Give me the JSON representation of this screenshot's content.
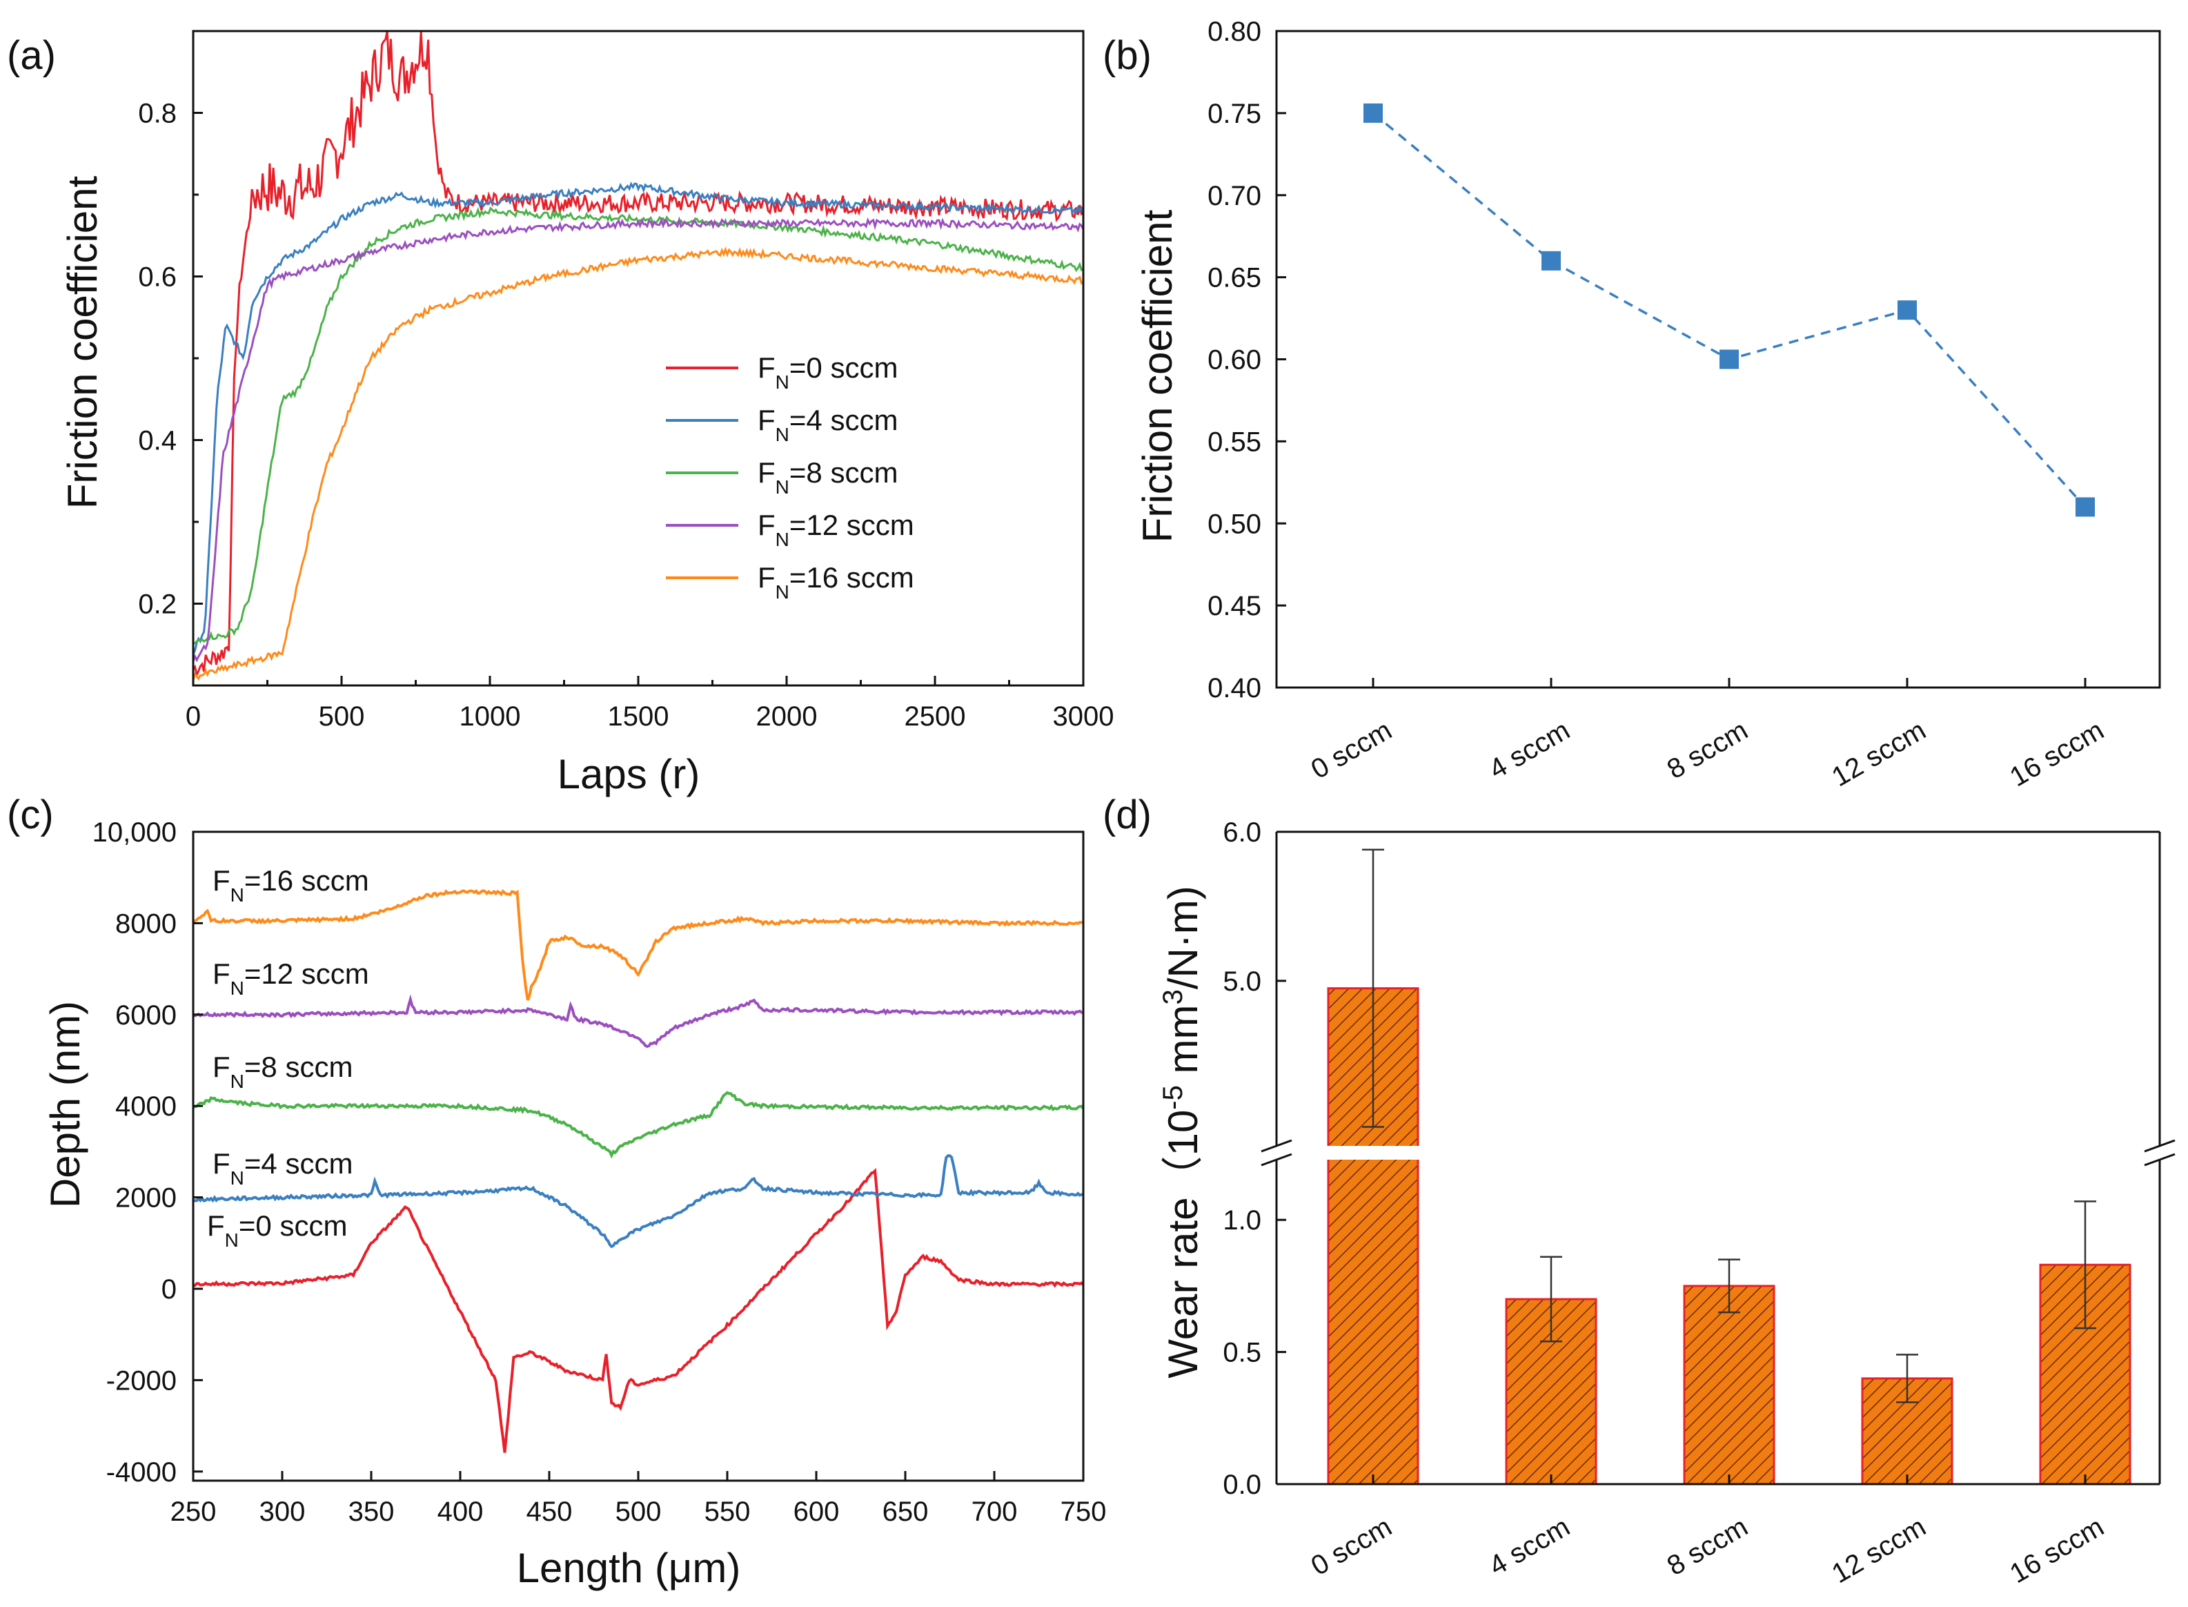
{
  "colors": {
    "sccm_0": "#e8202a",
    "sccm_4": "#3a7fc0",
    "sccm_8": "#4cb24a",
    "sccm_12": "#9b4fbf",
    "sccm_16": "#ff8a1a",
    "marker_b": "#3a7fc0",
    "bar_fill": "#f07c12",
    "bar_edge": "#e8202a"
  },
  "chart_data": [
    {
      "panel": "(a)",
      "type": "line",
      "xlabel": "Laps (r)",
      "ylabel": "Friction coefficient",
      "xlim": [
        0,
        3000
      ],
      "ylim": [
        0.1,
        0.9
      ],
      "xticks": [
        "0",
        "500",
        "1000",
        "1500",
        "2000",
        "2500",
        "3000"
      ],
      "yticks": [
        "0.2",
        "0.4",
        "0.6",
        "0.8"
      ],
      "legend": [
        "F_N=0 sccm",
        "F_N=4 sccm",
        "F_N=8 sccm",
        "F_N=12 sccm",
        "F_N=16 sccm"
      ],
      "legend_parts": {
        "sym": "F",
        "sub": "N"
      },
      "legend_values": [
        "=0 sccm",
        "=4 sccm",
        "=8 sccm",
        "=12 sccm",
        "=16 sccm"
      ],
      "series": [
        {
          "name": "F_N=0 sccm",
          "x": [
            0,
            50,
            100,
            120,
            140,
            160,
            200,
            250,
            300,
            400,
            500,
            600,
            650,
            700,
            750,
            790,
            820,
            850,
            900,
            1000,
            1200,
            1500,
            1800,
            2000,
            2500,
            3000
          ],
          "y": [
            0.12,
            0.13,
            0.14,
            0.15,
            0.5,
            0.6,
            0.7,
            0.71,
            0.7,
            0.71,
            0.76,
            0.84,
            0.88,
            0.84,
            0.87,
            0.89,
            0.75,
            0.7,
            0.69,
            0.69,
            0.69,
            0.69,
            0.69,
            0.69,
            0.685,
            0.68
          ]
        },
        {
          "name": "F_N=4 sccm",
          "x": [
            0,
            40,
            80,
            110,
            140,
            170,
            200,
            250,
            300,
            400,
            500,
            600,
            700,
            800,
            1000,
            1200,
            1500,
            1800,
            2000,
            2500,
            3000
          ],
          "y": [
            0.14,
            0.17,
            0.45,
            0.54,
            0.52,
            0.5,
            0.57,
            0.6,
            0.62,
            0.64,
            0.67,
            0.69,
            0.7,
            0.69,
            0.69,
            0.7,
            0.71,
            0.695,
            0.69,
            0.685,
            0.68
          ]
        },
        {
          "name": "F_N=8 sccm",
          "x": [
            0,
            50,
            100,
            150,
            200,
            250,
            300,
            350,
            400,
            450,
            500,
            600,
            700,
            800,
            1000,
            1200,
            1500,
            1800,
            2000,
            2500,
            3000
          ],
          "y": [
            0.15,
            0.16,
            0.16,
            0.17,
            0.22,
            0.34,
            0.45,
            0.46,
            0.5,
            0.56,
            0.6,
            0.64,
            0.66,
            0.67,
            0.68,
            0.675,
            0.67,
            0.665,
            0.66,
            0.64,
            0.61
          ]
        },
        {
          "name": "F_N=12 sccm",
          "x": [
            0,
            50,
            100,
            150,
            200,
            250,
            300,
            400,
            500,
            600,
            800,
            1000,
            1200,
            1500,
            1800,
            2000,
            2500,
            3000
          ],
          "y": [
            0.13,
            0.15,
            0.38,
            0.45,
            0.52,
            0.59,
            0.6,
            0.61,
            0.62,
            0.63,
            0.645,
            0.655,
            0.66,
            0.665,
            0.665,
            0.665,
            0.665,
            0.66
          ]
        },
        {
          "name": "F_N=16 sccm",
          "x": [
            0,
            100,
            200,
            300,
            350,
            400,
            450,
            500,
            550,
            600,
            700,
            800,
            1000,
            1200,
            1500,
            1800,
            2000,
            2500,
            3000
          ],
          "y": [
            0.11,
            0.12,
            0.13,
            0.14,
            0.22,
            0.3,
            0.37,
            0.41,
            0.46,
            0.5,
            0.54,
            0.56,
            0.58,
            0.6,
            0.62,
            0.63,
            0.625,
            0.61,
            0.595
          ]
        }
      ]
    },
    {
      "panel": "(b)",
      "type": "line",
      "ylabel": "Friction coefficient",
      "categories": [
        "0 sccm",
        "4 sccm",
        "8 sccm",
        "12 sccm",
        "16 sccm"
      ],
      "values": [
        0.75,
        0.66,
        0.6,
        0.63,
        0.51
      ],
      "ylim": [
        0.4,
        0.8
      ],
      "yticks": [
        "0.40",
        "0.45",
        "0.50",
        "0.55",
        "0.60",
        "0.65",
        "0.70",
        "0.75",
        "0.80"
      ]
    },
    {
      "panel": "(c)",
      "type": "line",
      "xlabel": "Length (μm)",
      "ylabel": "Depth (nm)",
      "xlim": [
        250,
        750
      ],
      "ylim": [
        -4200,
        10000
      ],
      "xticks": [
        "250",
        "300",
        "350",
        "400",
        "450",
        "500",
        "550",
        "600",
        "650",
        "700",
        "750"
      ],
      "yticks": [
        "-4000",
        "-2000",
        "0",
        "2000",
        "4000",
        "6000",
        "8000",
        "10,000"
      ],
      "labels": [
        "F_N=16 sccm",
        "F_N=12 sccm",
        "F_N=8 sccm",
        "F_N=4 sccm",
        "F_N=0 sccm"
      ],
      "label_values": [
        "=16 sccm",
        "=12 sccm",
        "=8 sccm",
        "=4 sccm",
        "=0 sccm"
      ],
      "series": [
        {
          "name": "F_N=0 sccm",
          "x": [
            250,
            300,
            340,
            350,
            360,
            370,
            380,
            400,
            420,
            425,
            430,
            440,
            460,
            480,
            482,
            485,
            490,
            495,
            500,
            520,
            550,
            600,
            620,
            633,
            640,
            645,
            650,
            660,
            670,
            680,
            700,
            750
          ],
          "y": [
            100,
            120,
            300,
            1000,
            1400,
            1800,
            1000,
            -500,
            -2000,
            -3600,
            -1500,
            -1400,
            -1800,
            -2000,
            -1400,
            -2500,
            -2600,
            -2000,
            -2100,
            -1900,
            -800,
            1200,
            2000,
            2600,
            -800,
            -500,
            300,
            700,
            600,
            200,
            100,
            100
          ]
        },
        {
          "name": "F_N=4 sccm",
          "x": [
            250,
            300,
            350,
            352,
            355,
            400,
            440,
            460,
            480,
            485,
            490,
            500,
            520,
            540,
            560,
            565,
            570,
            600,
            650,
            670,
            673,
            676,
            680,
            700,
            720,
            725,
            730,
            750
          ],
          "y": [
            1950,
            2000,
            2050,
            2350,
            2050,
            2100,
            2200,
            1800,
            1200,
            900,
            1100,
            1300,
            1600,
            2100,
            2200,
            2400,
            2200,
            2100,
            2050,
            2050,
            2900,
            2900,
            2100,
            2100,
            2100,
            2300,
            2100,
            2050
          ]
        },
        {
          "name": "F_N=8 sccm",
          "x": [
            250,
            260,
            280,
            300,
            350,
            400,
            440,
            460,
            480,
            485,
            490,
            500,
            520,
            540,
            550,
            560,
            570,
            600,
            650,
            700,
            750
          ],
          "y": [
            3950,
            4150,
            4050,
            4000,
            4000,
            4000,
            3900,
            3600,
            3100,
            2950,
            3100,
            3300,
            3600,
            3800,
            4300,
            4050,
            4000,
            3980,
            3960,
            3960,
            3960
          ]
        },
        {
          "name": "F_N=12 sccm",
          "x": [
            250,
            300,
            370,
            372,
            375,
            400,
            440,
            460,
            462,
            465,
            480,
            500,
            505,
            510,
            520,
            540,
            560,
            565,
            570,
            600,
            650,
            700,
            750
          ],
          "y": [
            6000,
            6000,
            6050,
            6300,
            6050,
            6050,
            6100,
            5900,
            6200,
            5900,
            5800,
            5500,
            5300,
            5400,
            5700,
            6000,
            6200,
            6300,
            6100,
            6100,
            6050,
            6050,
            6050
          ]
        },
        {
          "name": "F_N=16 sccm",
          "x": [
            250,
            255,
            258,
            260,
            300,
            340,
            360,
            380,
            400,
            432,
            435,
            437,
            438,
            440,
            445,
            450,
            460,
            470,
            480,
            490,
            500,
            505,
            510,
            520,
            540,
            560,
            570,
            600,
            650,
            700,
            750
          ],
          "y": [
            8050,
            8150,
            8300,
            8050,
            8050,
            8100,
            8300,
            8600,
            8700,
            8650,
            7200,
            6500,
            6300,
            6600,
            7000,
            7600,
            7700,
            7500,
            7500,
            7300,
            6900,
            7200,
            7600,
            7900,
            8000,
            8100,
            8000,
            8050,
            8050,
            8000,
            8000
          ]
        }
      ]
    },
    {
      "panel": "(d)",
      "type": "bar",
      "ylabel": "Wear rate（10⁻⁵ mm³/N·m)",
      "ylabel_parts": {
        "main": "Wear rate（10",
        "exp1": "-5",
        "mid": " mm",
        "exp2": "3",
        "end": "/N·m)"
      },
      "categories": [
        "0 sccm",
        "4 sccm",
        "8 sccm",
        "12 sccm",
        "16 sccm"
      ],
      "values": [
        4.95,
        0.7,
        0.75,
        0.4,
        0.83
      ],
      "errors": [
        0.93,
        0.16,
        0.1,
        0.09,
        0.24
      ],
      "axis_break": [
        1.28,
        3.8
      ],
      "ylim_lower": [
        0.0,
        1.28
      ],
      "ylim_upper": [
        3.8,
        6.0
      ],
      "yticks": [
        "0.0",
        "0.5",
        "1.0",
        "5.0",
        "6.0"
      ]
    }
  ],
  "panels": {
    "a": "(a)",
    "b": "(b)",
    "c": "(c)",
    "d": "(d)"
  }
}
